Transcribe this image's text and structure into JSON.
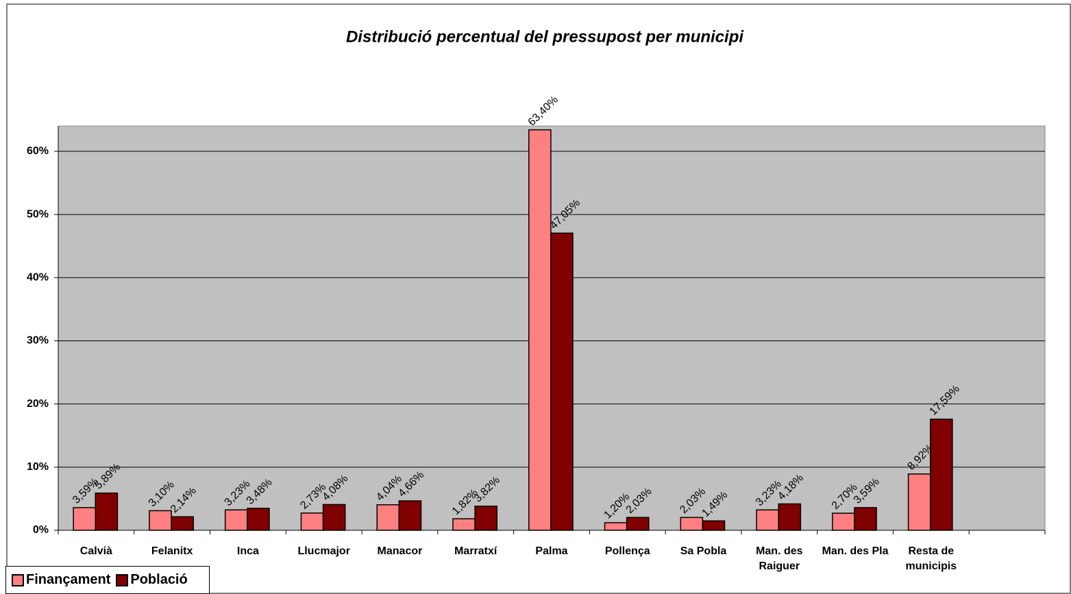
{
  "chart_data": {
    "type": "bar",
    "title": "Distribució percentual del pressupost per municipi",
    "categories": [
      "Calvià",
      "Felanitx",
      "Inca",
      "Llucmajor",
      "Manacor",
      "Marratxí",
      "Palma",
      "Pollença",
      "Sa Pobla",
      "Man. des Raiguer",
      "Man. des Pla",
      "Resta de municipis",
      null
    ],
    "series": [
      {
        "name": "Finançament",
        "color": "#FF8080",
        "values": [
          3.59,
          3.1,
          3.23,
          2.73,
          4.04,
          1.82,
          63.4,
          1.2,
          2.03,
          3.23,
          2.7,
          8.92,
          null
        ],
        "value_labels": [
          "3,59%",
          "3,10%",
          "3,23%",
          "2,73%",
          "4,04%",
          "1,82%",
          "63,40%",
          "1,20%",
          "2,03%",
          "3,23%",
          "2,70%",
          "8,92%",
          null
        ]
      },
      {
        "name": "Població",
        "color": "#800000",
        "values": [
          5.89,
          2.14,
          3.48,
          4.08,
          4.66,
          3.82,
          47.05,
          2.03,
          1.49,
          4.18,
          3.59,
          17.59,
          null
        ],
        "value_labels": [
          "5,89%",
          "2,14%",
          "3,48%",
          "4,08%",
          "4,66%",
          "3,82%",
          "47,05%",
          "2,03%",
          "1,49%",
          "4,18%",
          "3,59%",
          "17,59%",
          null
        ]
      }
    ],
    "ylim": [
      0,
      64
    ],
    "yticks": [
      {
        "value": 0,
        "label": "0%"
      },
      {
        "value": 10,
        "label": "10%"
      },
      {
        "value": 20,
        "label": "20%"
      },
      {
        "value": 30,
        "label": "30%"
      },
      {
        "value": 40,
        "label": "40%"
      },
      {
        "value": 50,
        "label": "50%"
      },
      {
        "value": 60,
        "label": "60%"
      }
    ],
    "grid": true,
    "legend": "bottom-left",
    "background": "#C0C0C0"
  }
}
